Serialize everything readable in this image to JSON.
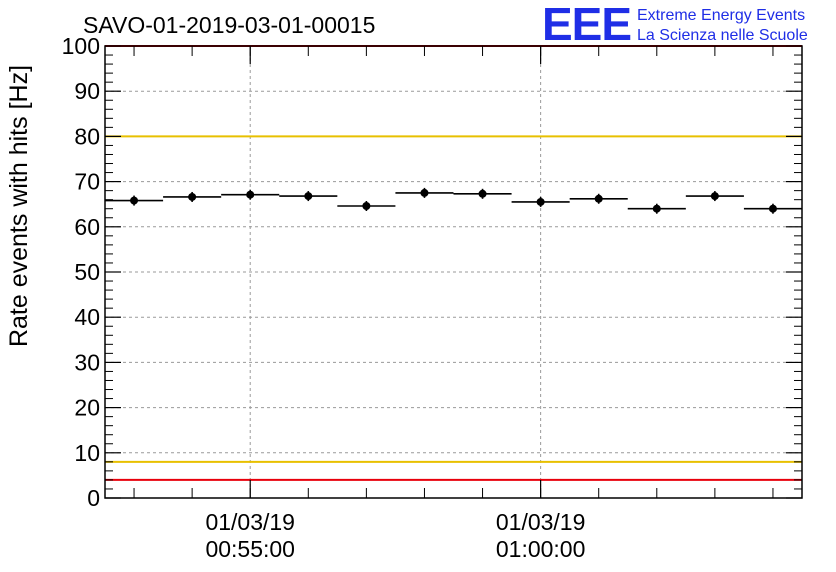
{
  "chart_data": {
    "type": "scatter",
    "title": "SAVO-01-2019-03-01-00015",
    "ylabel": "Rate events with hits [Hz]",
    "xlabel": "",
    "ylim": [
      0,
      100
    ],
    "yticks": [
      "0",
      "10",
      "20",
      "30",
      "40",
      "50",
      "60",
      "70",
      "80",
      "90",
      "100"
    ],
    "x_axis": {
      "start": "00:52:30",
      "end": "01:04:30",
      "tick_labels": [
        {
          "date": "01/03/19",
          "time": "00:55:00",
          "at_minutes": 2.5
        },
        {
          "date": "01/03/19",
          "time": "01:00:00",
          "at_minutes": 7.5
        }
      ]
    },
    "series": [
      {
        "points": [
          {
            "x": "00:53:00",
            "y": 65.8
          },
          {
            "x": "00:54:00",
            "y": 66.6
          },
          {
            "x": "00:55:00",
            "y": 67.1
          },
          {
            "x": "00:56:00",
            "y": 66.8
          },
          {
            "x": "00:57:00",
            "y": 64.6
          },
          {
            "x": "00:58:00",
            "y": 67.5
          },
          {
            "x": "00:59:00",
            "y": 67.3
          },
          {
            "x": "01:00:00",
            "y": 65.5
          },
          {
            "x": "01:01:00",
            "y": 66.2
          },
          {
            "x": "01:02:00",
            "y": 64.0
          },
          {
            "x": "01:03:00",
            "y": 66.8
          },
          {
            "x": "01:04:00",
            "y": 64.0
          }
        ]
      }
    ],
    "reference_lines": [
      {
        "y": 100,
        "color": "#e8000b"
      },
      {
        "y": 80,
        "color": "#e8c000"
      },
      {
        "y": 8,
        "color": "#e8c000"
      },
      {
        "y": 4,
        "color": "#e8000b"
      }
    ],
    "grid": true
  },
  "logo": {
    "mark": "EEE",
    "line1": "Extreme Energy Events",
    "line2": "La Scienza nelle Scuole",
    "color": "#1f2ee6"
  }
}
